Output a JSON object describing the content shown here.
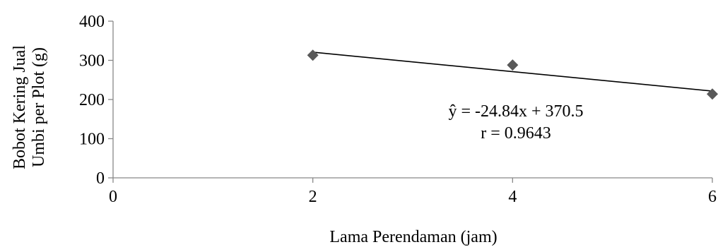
{
  "chart_data": {
    "type": "scatter",
    "title": "",
    "xlabel": "Lama Perendaman (jam)",
    "ylabel_lines": [
      "Bobot Kering Jual",
      "Umbi per Plot (g)"
    ],
    "xlim": [
      0,
      6
    ],
    "ylim": [
      0,
      400
    ],
    "xticks": [
      0,
      2,
      4,
      6
    ],
    "yticks": [
      0,
      100,
      200,
      300,
      400
    ],
    "xtick_labels": [
      "0",
      "2",
      "4",
      "6"
    ],
    "ytick_labels": [
      "0",
      "100",
      "200",
      "300",
      "400"
    ],
    "grid": false,
    "series": [
      {
        "x": [
          2,
          4,
          6
        ],
        "y": [
          313,
          288,
          214
        ],
        "marker": "diamond",
        "color": "#595959"
      }
    ],
    "trendline": {
      "type": "linear",
      "slope": -24.84,
      "intercept": 370.5,
      "x_range": [
        2,
        6
      ],
      "color": "#000000"
    },
    "annotations": [
      "ŷ = -24.84x + 370.5",
      "r = 0.9643"
    ]
  }
}
